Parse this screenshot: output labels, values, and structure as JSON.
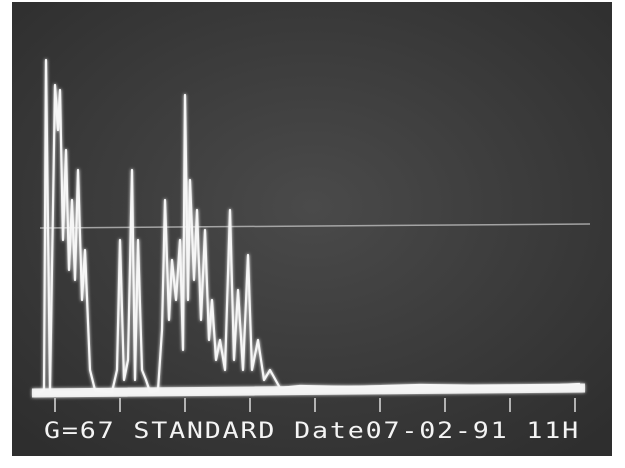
{
  "screen": {
    "status_line": "G=67 STANDARD  Date07-02-91 11H"
  }
}
